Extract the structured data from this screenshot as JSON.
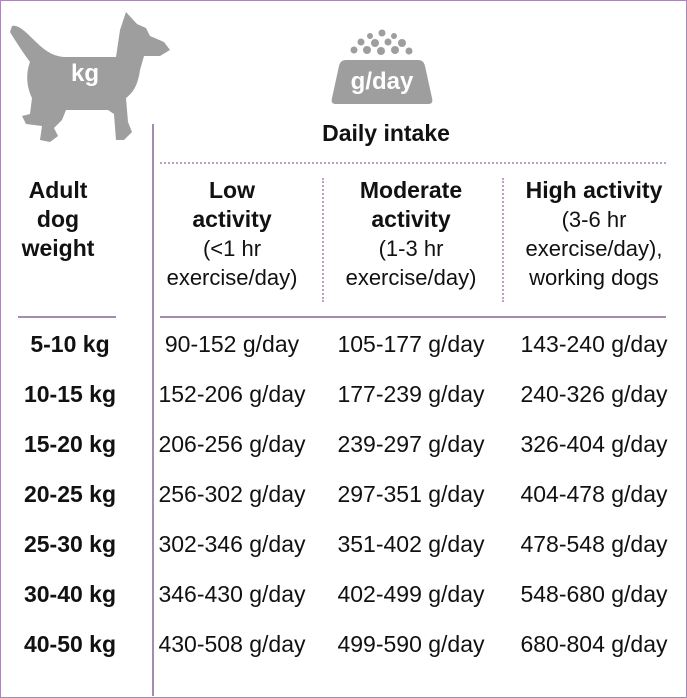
{
  "dog_icon": {
    "label": "kg",
    "color": "#9e9e9e"
  },
  "bowl_icon": {
    "label": "g/day",
    "color": "#9e9e9e"
  },
  "table": {
    "title": "Daily intake",
    "weight_header": [
      "Adult",
      "dog",
      "weight"
    ],
    "columns": [
      {
        "lines_bold": [
          "Low",
          "activity"
        ],
        "lines": [
          "(<1 hr",
          "exercise/day)"
        ]
      },
      {
        "lines_bold": [
          "Moderate",
          "activity"
        ],
        "lines": [
          "(1-3 hr",
          "exercise/day)"
        ]
      },
      {
        "lines_bold": [
          "High activity"
        ],
        "lines": [
          "(3-6 hr",
          "exercise/day),",
          "working dogs"
        ]
      }
    ],
    "rows": [
      {
        "weight": "5-10 kg",
        "low": "90-152 g/day",
        "moderate": "105-177 g/day",
        "high": "143-240 g/day"
      },
      {
        "weight": "10-15 kg",
        "low": "152-206 g/day",
        "moderate": "177-239 g/day",
        "high": "240-326 g/day"
      },
      {
        "weight": "15-20 kg",
        "low": "206-256 g/day",
        "moderate": "239-297 g/day",
        "high": "326-404 g/day"
      },
      {
        "weight": "20-25 kg",
        "low": "256-302 g/day",
        "moderate": "297-351 g/day",
        "high": "404-478 g/day"
      },
      {
        "weight": "25-30 kg",
        "low": "302-346 g/day",
        "moderate": "351-402 g/day",
        "high": "478-548 g/day"
      },
      {
        "weight": "30-40 kg",
        "low": "346-430 g/day",
        "moderate": "402-499 g/day",
        "high": "548-680 g/day"
      },
      {
        "weight": "40-50 kg",
        "low": "430-508 g/day",
        "moderate": "499-590 g/day",
        "high": "680-804 g/day"
      }
    ]
  }
}
